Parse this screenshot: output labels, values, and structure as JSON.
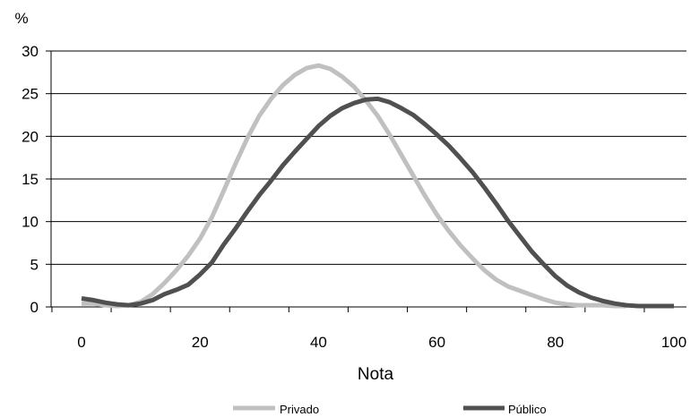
{
  "chart_data": {
    "type": "line",
    "title": "",
    "xlabel": "Nota",
    "ylabel": "%",
    "xlim": [
      -5,
      100
    ],
    "ylim": [
      0,
      30
    ],
    "x_ticks": [
      0,
      20,
      40,
      60,
      80,
      100
    ],
    "y_ticks": [
      0,
      5,
      10,
      15,
      20,
      25,
      30
    ],
    "grid": "horizontal",
    "legend_position": "bottom",
    "series": [
      {
        "name": "Privado",
        "color": "#c0c0c0",
        "x": [
          0,
          2,
          4,
          6,
          8,
          10,
          12,
          14,
          16,
          18,
          20,
          22,
          24,
          26,
          28,
          30,
          32,
          34,
          36,
          38,
          40,
          42,
          44,
          46,
          48,
          50,
          52,
          54,
          56,
          58,
          60,
          62,
          64,
          66,
          68,
          70,
          72,
          74,
          76,
          78,
          80,
          82,
          84,
          86,
          88,
          90,
          92
        ],
        "values": [
          0.4,
          0.4,
          0.2,
          0.1,
          0.2,
          0.6,
          1.5,
          2.8,
          4.3,
          6.0,
          8.0,
          10.5,
          13.6,
          16.8,
          19.8,
          22.4,
          24.4,
          26.0,
          27.2,
          28.0,
          28.3,
          27.9,
          27.0,
          25.8,
          24.2,
          22.4,
          20.2,
          17.8,
          15.4,
          13.0,
          10.8,
          8.9,
          7.2,
          5.7,
          4.3,
          3.2,
          2.4,
          1.9,
          1.4,
          0.9,
          0.5,
          0.3,
          0.2,
          0.2,
          0.2,
          0.1,
          0.1
        ]
      },
      {
        "name": "Público",
        "color": "#505050",
        "x": [
          0,
          2,
          4,
          6,
          8,
          10,
          12,
          14,
          16,
          18,
          20,
          22,
          24,
          26,
          28,
          30,
          32,
          34,
          36,
          38,
          40,
          42,
          44,
          46,
          48,
          50,
          52,
          54,
          56,
          58,
          60,
          62,
          64,
          66,
          68,
          70,
          72,
          74,
          76,
          78,
          80,
          82,
          84,
          86,
          88,
          90,
          92,
          94,
          96,
          98,
          100
        ],
        "values": [
          1.0,
          0.8,
          0.5,
          0.3,
          0.2,
          0.4,
          0.8,
          1.5,
          2.0,
          2.6,
          3.8,
          5.2,
          7.3,
          9.2,
          11.2,
          13.1,
          14.8,
          16.6,
          18.2,
          19.7,
          21.2,
          22.4,
          23.3,
          23.9,
          24.3,
          24.4,
          24.0,
          23.3,
          22.5,
          21.4,
          20.2,
          18.9,
          17.4,
          15.8,
          14.0,
          12.1,
          10.1,
          8.3,
          6.5,
          5.0,
          3.6,
          2.5,
          1.7,
          1.1,
          0.7,
          0.4,
          0.2,
          0.1,
          0.1,
          0.1,
          0.1
        ]
      }
    ]
  }
}
